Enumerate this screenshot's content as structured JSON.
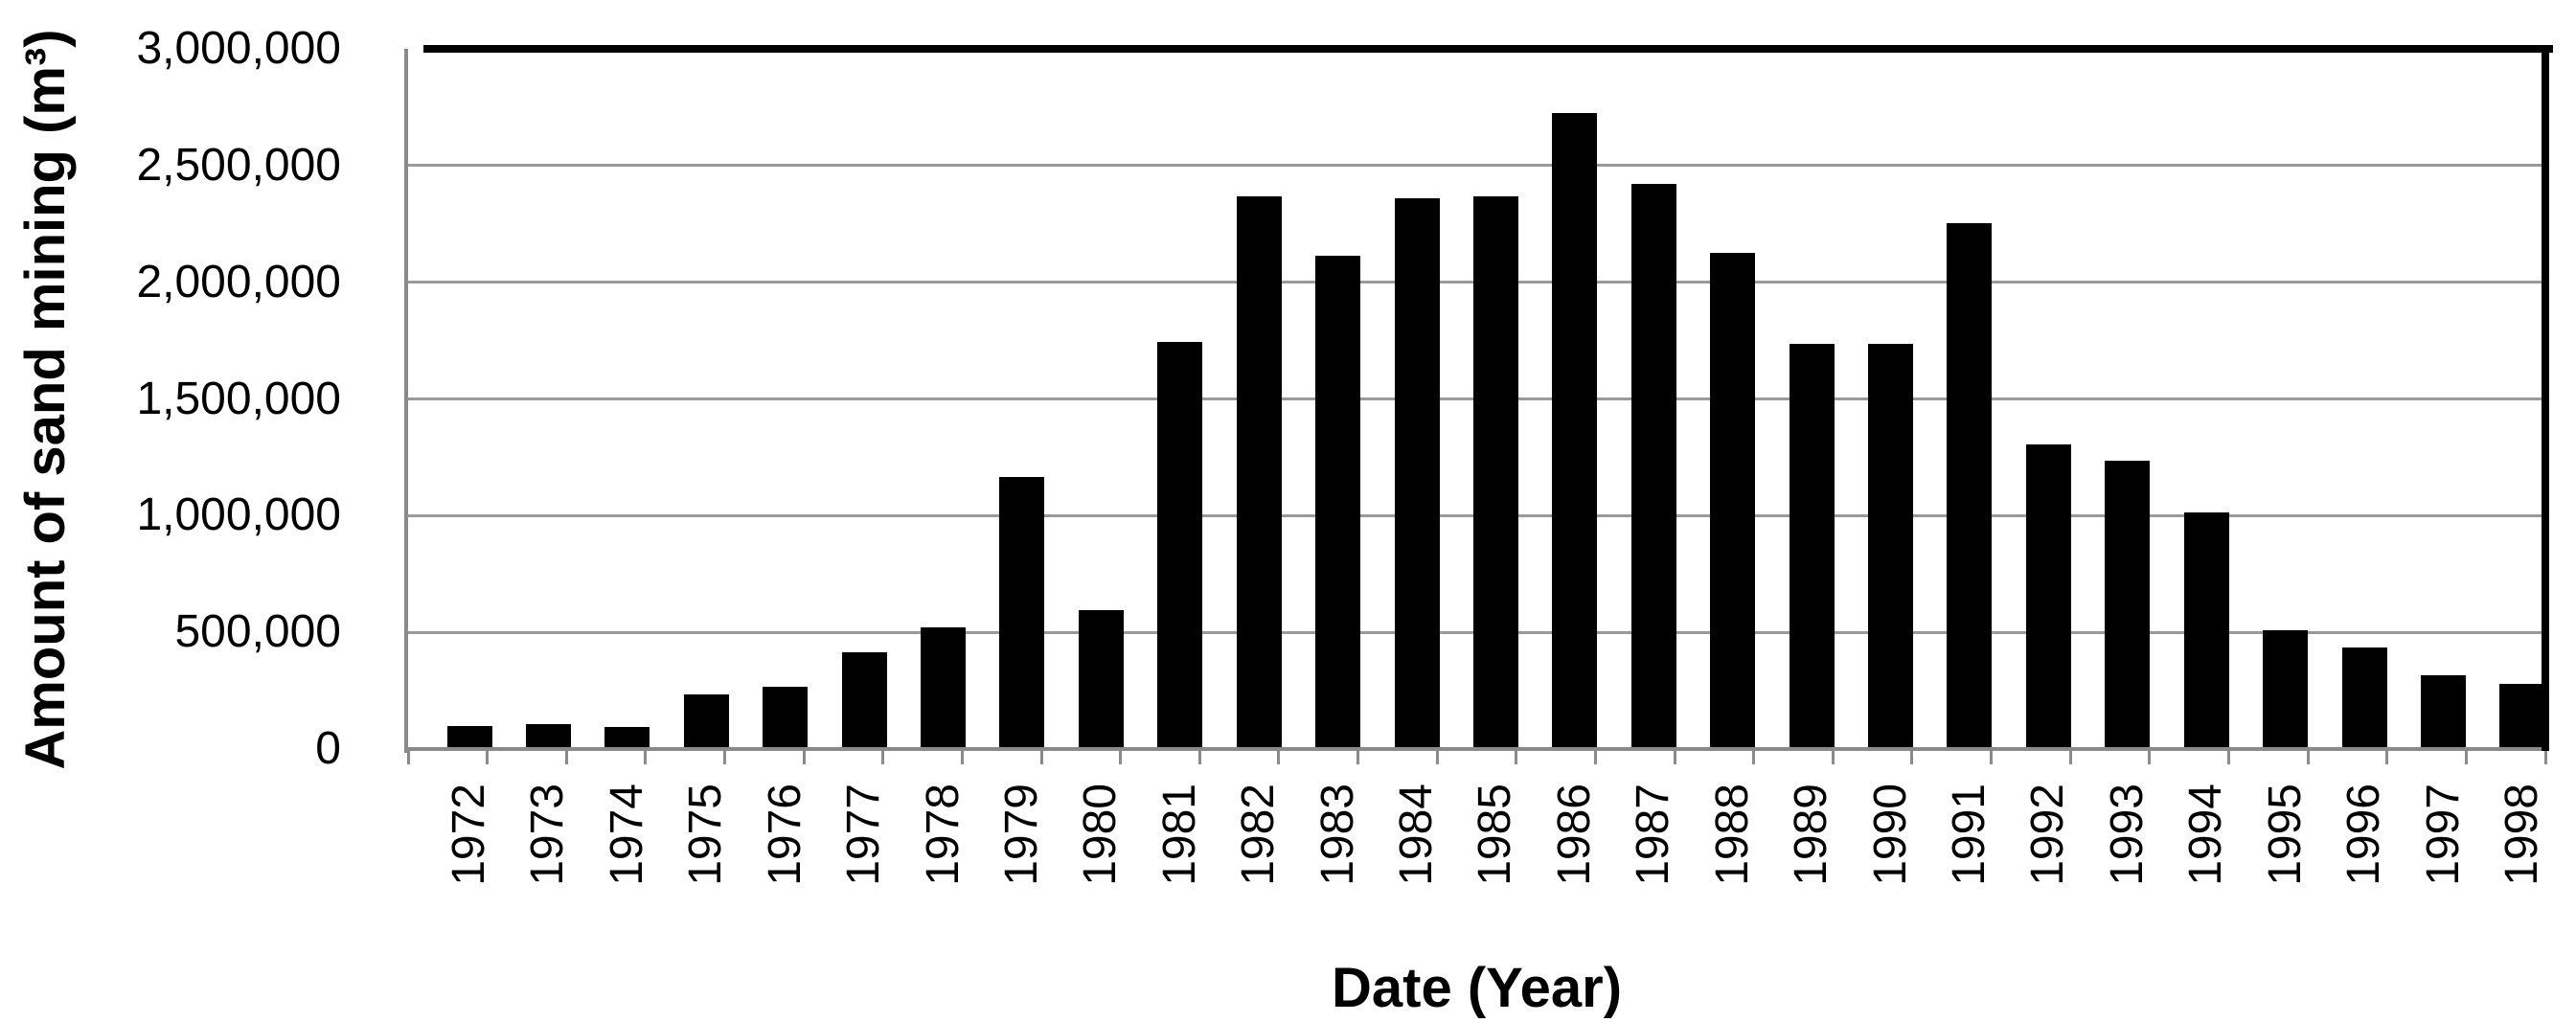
{
  "chart_data": {
    "type": "bar",
    "title": "",
    "xlabel": "Date (Year)",
    "ylabel": "Amount of sand mining (m³)",
    "categories": [
      "1972",
      "1973",
      "1974",
      "1975",
      "1976",
      "1977",
      "1978",
      "1979",
      "1980",
      "1981",
      "1982",
      "1983",
      "1984",
      "1985",
      "1986",
      "1987",
      "1988",
      "1989",
      "1990",
      "1991",
      "1992",
      "1993",
      "1994",
      "1995",
      "1996",
      "1997",
      "1998"
    ],
    "values": [
      100000,
      105000,
      95000,
      235000,
      265000,
      415000,
      520000,
      1165000,
      595000,
      1745000,
      2370000,
      2115000,
      2360000,
      2370000,
      2725000,
      2420000,
      2125000,
      1735000,
      1735000,
      2255000,
      1305000,
      1235000,
      1015000,
      510000,
      435000,
      315000,
      280000
    ],
    "ylim": [
      0,
      3000000
    ],
    "ytick_interval": 500000,
    "ytick_labels_top_to_bottom": [
      "3,000,000",
      "2,500,000",
      "2,000,000",
      "1,500,000",
      "1,000,000",
      "500,000",
      "0"
    ],
    "grid": true,
    "legend_position": "none",
    "colors": {
      "bar": "#000000",
      "gridline": "#9a9a9a",
      "axis": "#8a8a8a",
      "frame": "#000000",
      "background": "#ffffff",
      "text": "#000000"
    }
  }
}
